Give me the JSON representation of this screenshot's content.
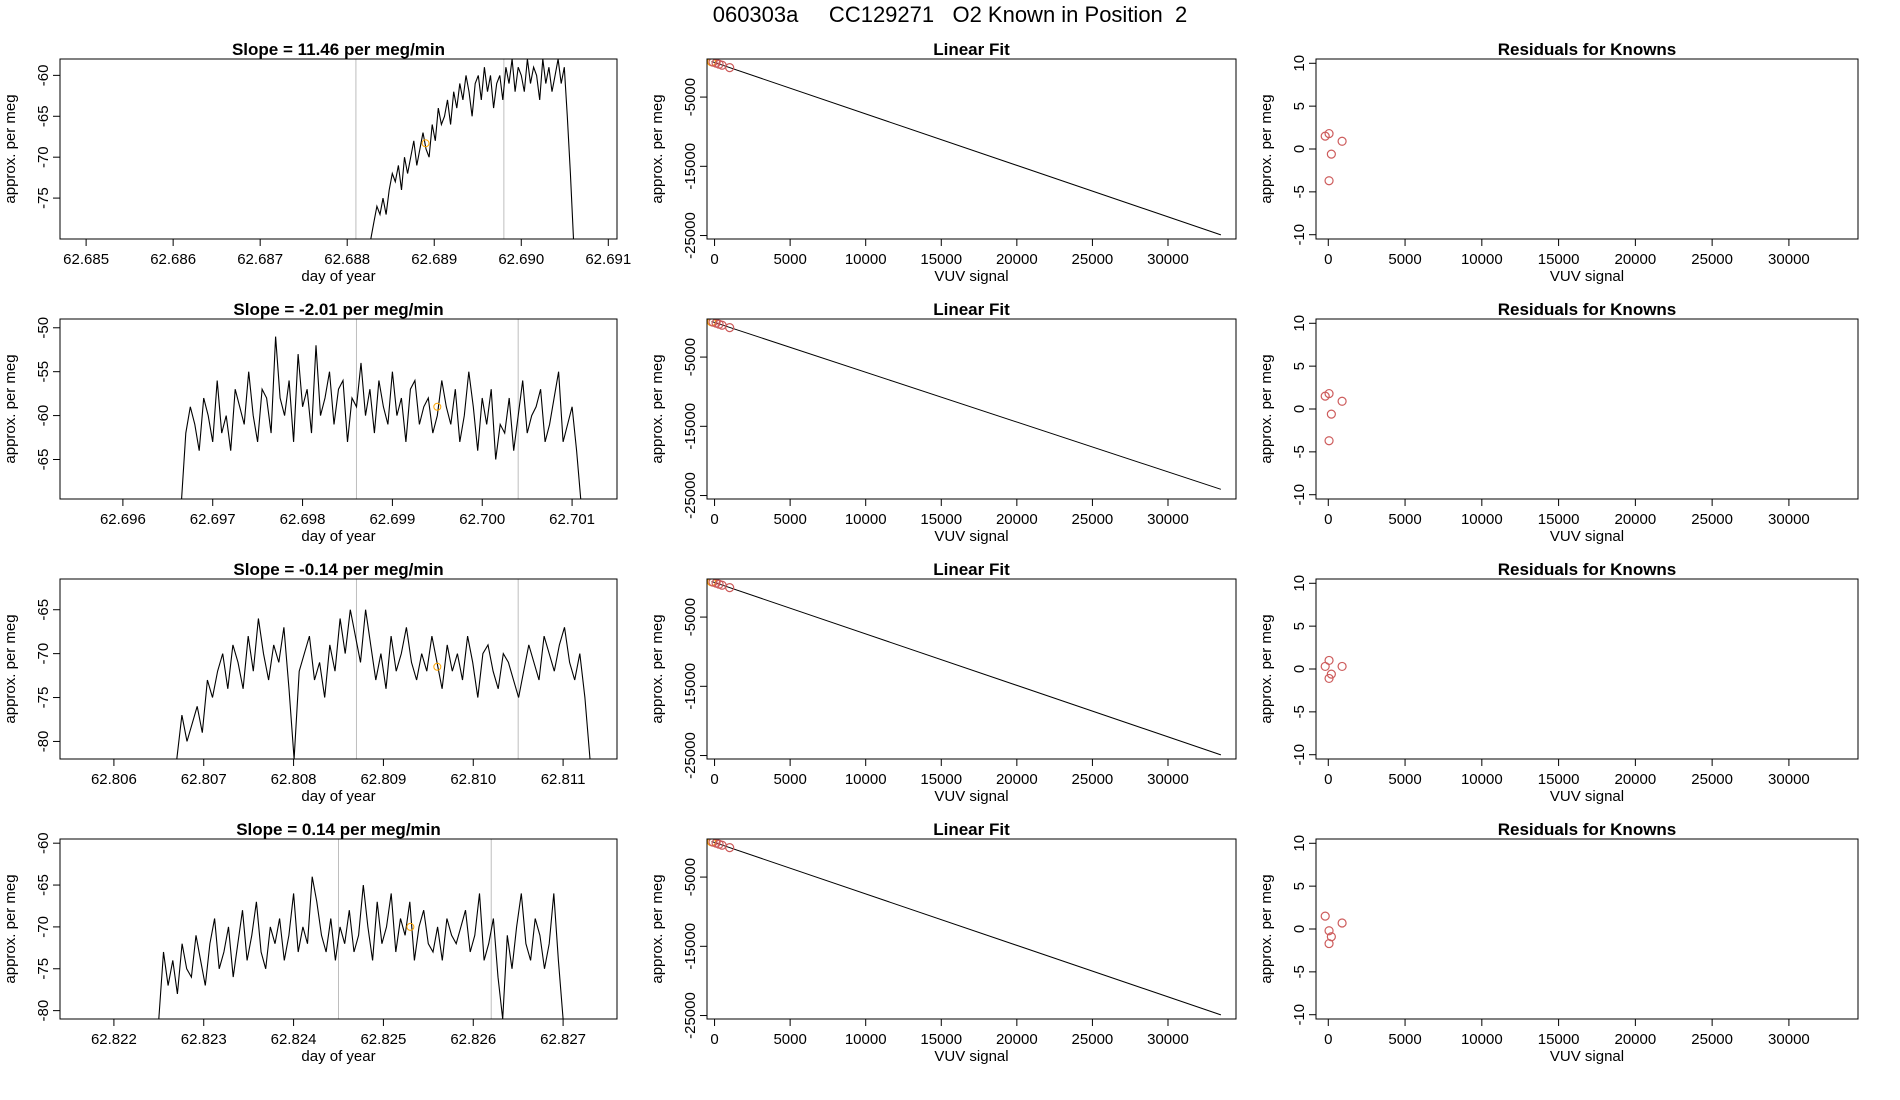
{
  "page_title": "060303a     CC129271   O2 Known in Position  2",
  "colors": {
    "trace": "#000000",
    "gridline": "#bebebe",
    "known_marker": "#ffa500",
    "fit_marker": "#cd5c5c",
    "frame": "#000000"
  },
  "chart_data": [
    {
      "id": "ts1",
      "type": "line",
      "title": "Slope =  11.46  per meg/min",
      "xlabel": "day of year",
      "ylabel": "approx. per meg",
      "xlim": [
        62.6847,
        62.6911
      ],
      "ylim": [
        -80,
        -58
      ],
      "xticks": [
        62.685,
        62.686,
        62.687,
        62.688,
        62.689,
        62.69,
        62.691
      ],
      "xtick_labels": [
        "62.685",
        "62.686",
        "62.687",
        "62.688",
        "62.689",
        "62.690",
        "62.691"
      ],
      "yticks": [
        -75,
        -70,
        -65,
        -60
      ],
      "ytick_labels": [
        "-75",
        "-70",
        "-65",
        "-60"
      ],
      "vlines": [
        62.6881,
        62.6898
      ],
      "marker": {
        "x": 62.6889,
        "y": -68.3
      },
      "x_start": 62.6882,
      "x_end": 62.6906,
      "values": [
        -80,
        -80,
        -80,
        -78,
        -76,
        -77,
        -75,
        -77,
        -74,
        -72,
        -73,
        -71,
        -74,
        -70,
        -72,
        -70,
        -68,
        -71,
        -69,
        -67,
        -69,
        -70,
        -66,
        -68,
        -64,
        -66,
        -65,
        -63,
        -66,
        -62,
        -64,
        -61,
        -63,
        -60,
        -62,
        -65,
        -61,
        -60,
        -63,
        -59,
        -62,
        -60,
        -64,
        -61,
        -60,
        -63,
        -59,
        -61,
        -58,
        -62,
        -59,
        -60,
        -62,
        -58,
        -61,
        -59,
        -60,
        -63,
        -58,
        -61,
        -59,
        -62,
        -60,
        -58,
        -61,
        -59,
        -65,
        -72,
        -80
      ]
    },
    {
      "id": "fit1",
      "type": "line",
      "title": "Linear Fit",
      "xlabel": "VUV signal",
      "ylabel": "approx. per meg",
      "xlim": [
        -500,
        34500
      ],
      "ylim": [
        -25500,
        500
      ],
      "xticks": [
        0,
        5000,
        10000,
        15000,
        20000,
        25000,
        30000
      ],
      "xtick_labels": [
        "0",
        "5000",
        "10000",
        "15000",
        "20000",
        "25000",
        "30000"
      ],
      "yticks": [
        -25000,
        -15000,
        -5000
      ],
      "ytick_labels": [
        "-25000",
        "-15000",
        "-5000"
      ],
      "line": {
        "x": [
          -200,
          33500
        ],
        "y": [
          150,
          -24900
        ]
      },
      "points": [
        {
          "x": -200,
          "y": 100,
          "color": "#ffa500"
        },
        {
          "x": -100,
          "y": 50
        },
        {
          "x": 100,
          "y": -100
        },
        {
          "x": 300,
          "y": -250
        },
        {
          "x": 500,
          "y": -400
        },
        {
          "x": 1000,
          "y": -750
        }
      ]
    },
    {
      "id": "res1",
      "type": "scatter",
      "title": "Residuals for Knowns",
      "xlabel": "VUV signal",
      "ylabel": "approx. per meg",
      "xlim": [
        -800,
        34500
      ],
      "ylim": [
        -10.5,
        10.5
      ],
      "xticks": [
        0,
        5000,
        10000,
        15000,
        20000,
        25000,
        30000
      ],
      "xtick_labels": [
        "0",
        "5000",
        "10000",
        "15000",
        "20000",
        "25000",
        "30000"
      ],
      "yticks": [
        -10,
        -5,
        0,
        5,
        10
      ],
      "ytick_labels": [
        "-10",
        "-5",
        "0",
        "5",
        "10"
      ],
      "points": [
        {
          "x": -200,
          "y": 1.5
        },
        {
          "x": 50,
          "y": 1.8
        },
        {
          "x": 200,
          "y": -0.6
        },
        {
          "x": 50,
          "y": -3.7
        },
        {
          "x": 900,
          "y": 0.9
        }
      ]
    },
    {
      "id": "ts2",
      "type": "line",
      "title": "Slope =  -2.01  per meg/min",
      "xlabel": "day of year",
      "ylabel": "approx. per meg",
      "xlim": [
        62.6953,
        62.7015
      ],
      "ylim": [
        -69.5,
        -49
      ],
      "xticks": [
        62.696,
        62.697,
        62.698,
        62.699,
        62.7,
        62.701
      ],
      "xtick_labels": [
        "62.696",
        "62.697",
        "62.698",
        "62.699",
        "62.700",
        "62.701"
      ],
      "yticks": [
        -65,
        -60,
        -55,
        -50
      ],
      "ytick_labels": [
        "-65",
        "-60",
        "-55",
        "-50"
      ],
      "vlines": [
        62.6986,
        62.7004
      ],
      "marker": {
        "x": 62.6995,
        "y": -59.0
      },
      "x_start": 62.6966,
      "x_end": 62.7011,
      "values": [
        -70,
        -70,
        -62,
        -59,
        -61,
        -64,
        -58,
        -60,
        -63,
        -56,
        -62,
        -60,
        -64,
        -57,
        -59,
        -61,
        -55,
        -60,
        -63,
        -57,
        -58,
        -62,
        -51,
        -58,
        -60,
        -56,
        -63,
        -53,
        -59,
        -57,
        -62,
        -52,
        -60,
        -58,
        -55,
        -61,
        -57,
        -56,
        -63,
        -58,
        -59,
        -54,
        -60,
        -57,
        -62,
        -56,
        -59,
        -61,
        -55,
        -60,
        -58,
        -63,
        -57,
        -56,
        -61,
        -59,
        -58,
        -62,
        -60,
        -56,
        -59,
        -61,
        -57,
        -63,
        -60,
        -55,
        -59,
        -64,
        -58,
        -61,
        -57,
        -65,
        -61,
        -62,
        -58,
        -64,
        -60,
        -56,
        -62,
        -60,
        -59,
        -57,
        -63,
        -61,
        -58,
        -55,
        -63,
        -61,
        -59,
        -64,
        -70
      ]
    },
    {
      "id": "fit2",
      "type": "line",
      "title": "Linear Fit",
      "xlabel": "VUV signal",
      "ylabel": "approx. per meg",
      "xlim": [
        -500,
        34500
      ],
      "ylim": [
        -25500,
        500
      ],
      "xticks": [
        0,
        5000,
        10000,
        15000,
        20000,
        25000,
        30000
      ],
      "xtick_labels": [
        "0",
        "5000",
        "10000",
        "15000",
        "20000",
        "25000",
        "30000"
      ],
      "yticks": [
        -25000,
        -15000,
        -5000
      ],
      "ytick_labels": [
        "-25000",
        "-15000",
        "-5000"
      ],
      "line": {
        "x": [
          -200,
          33500
        ],
        "y": [
          150,
          -24100
        ]
      },
      "points": [
        {
          "x": -200,
          "y": 100,
          "color": "#ffa500"
        },
        {
          "x": -100,
          "y": 50
        },
        {
          "x": 100,
          "y": -100
        },
        {
          "x": 300,
          "y": -250
        },
        {
          "x": 500,
          "y": -400
        },
        {
          "x": 1000,
          "y": -750
        }
      ]
    },
    {
      "id": "res2",
      "type": "scatter",
      "title": "Residuals for Knowns",
      "xlabel": "VUV signal",
      "ylabel": "approx. per meg",
      "xlim": [
        -800,
        34500
      ],
      "ylim": [
        -10.5,
        10.5
      ],
      "xticks": [
        0,
        5000,
        10000,
        15000,
        20000,
        25000,
        30000
      ],
      "xtick_labels": [
        "0",
        "5000",
        "10000",
        "15000",
        "20000",
        "25000",
        "30000"
      ],
      "yticks": [
        -10,
        -5,
        0,
        5,
        10
      ],
      "ytick_labels": [
        "-10",
        "-5",
        "0",
        "5",
        "10"
      ],
      "points": [
        {
          "x": -200,
          "y": 1.5
        },
        {
          "x": 50,
          "y": 1.8
        },
        {
          "x": 200,
          "y": -0.6
        },
        {
          "x": 50,
          "y": -3.7
        },
        {
          "x": 900,
          "y": 0.9
        }
      ]
    },
    {
      "id": "ts3",
      "type": "line",
      "title": "Slope =  -0.14  per meg/min",
      "xlabel": "day of year",
      "ylabel": "approx. per meg",
      "xlim": [
        62.8054,
        62.8116
      ],
      "ylim": [
        -82,
        -61.5
      ],
      "xticks": [
        62.806,
        62.807,
        62.808,
        62.809,
        62.81,
        62.811
      ],
      "xtick_labels": [
        "62.806",
        "62.807",
        "62.808",
        "62.809",
        "62.810",
        "62.811"
      ],
      "yticks": [
        -80,
        -75,
        -70,
        -65
      ],
      "ytick_labels": [
        "-80",
        "-75",
        "-70",
        "-65"
      ],
      "vlines": [
        62.8087,
        62.8105
      ],
      "marker": {
        "x": 62.8096,
        "y": -71.5
      },
      "x_start": 62.8067,
      "x_end": 62.8113,
      "values": [
        -82,
        -77,
        -80,
        -78,
        -76,
        -79,
        -73,
        -75,
        -72,
        -70,
        -74,
        -69,
        -71,
        -74,
        -68,
        -72,
        -66,
        -70,
        -73,
        -69,
        -71,
        -67,
        -74,
        -82,
        -72,
        -70,
        -68,
        -73,
        -71,
        -75,
        -69,
        -72,
        -66,
        -70,
        -65,
        -68,
        -71,
        -65,
        -69,
        -73,
        -70,
        -74,
        -68,
        -72,
        -70,
        -67,
        -71,
        -73,
        -70,
        -72,
        -68,
        -71,
        -74,
        -69,
        -72,
        -70,
        -73,
        -68,
        -71,
        -75,
        -70,
        -69,
        -72,
        -74,
        -70,
        -71,
        -73,
        -75,
        -72,
        -69,
        -71,
        -73,
        -68,
        -70,
        -72,
        -69,
        -67,
        -71,
        -73,
        -70,
        -75,
        -82
      ]
    },
    {
      "id": "fit3",
      "type": "line",
      "title": "Linear Fit",
      "xlabel": "VUV signal",
      "ylabel": "approx. per meg",
      "xlim": [
        -500,
        34500
      ],
      "ylim": [
        -25500,
        500
      ],
      "xticks": [
        0,
        5000,
        10000,
        15000,
        20000,
        25000,
        30000
      ],
      "xtick_labels": [
        "0",
        "5000",
        "10000",
        "15000",
        "20000",
        "25000",
        "30000"
      ],
      "yticks": [
        -25000,
        -15000,
        -5000
      ],
      "ytick_labels": [
        "-25000",
        "-15000",
        "-5000"
      ],
      "line": {
        "x": [
          -200,
          33500
        ],
        "y": [
          150,
          -24900
        ]
      },
      "points": [
        {
          "x": -200,
          "y": 100,
          "color": "#ffa500"
        },
        {
          "x": -100,
          "y": 50
        },
        {
          "x": 100,
          "y": -100
        },
        {
          "x": 300,
          "y": -250
        },
        {
          "x": 500,
          "y": -400
        },
        {
          "x": 1000,
          "y": -750
        }
      ]
    },
    {
      "id": "res3",
      "type": "scatter",
      "title": "Residuals for Knowns",
      "xlabel": "VUV signal",
      "ylabel": "approx. per meg",
      "xlim": [
        -800,
        34500
      ],
      "ylim": [
        -10.5,
        10.5
      ],
      "xticks": [
        0,
        5000,
        10000,
        15000,
        20000,
        25000,
        30000
      ],
      "xtick_labels": [
        "0",
        "5000",
        "10000",
        "15000",
        "20000",
        "25000",
        "30000"
      ],
      "yticks": [
        -10,
        -5,
        0,
        5,
        10
      ],
      "ytick_labels": [
        "-10",
        "-5",
        "0",
        "5",
        "10"
      ],
      "points": [
        {
          "x": -200,
          "y": 0.3
        },
        {
          "x": 50,
          "y": 1.0
        },
        {
          "x": 200,
          "y": -0.6
        },
        {
          "x": 50,
          "y": -1.1
        },
        {
          "x": 900,
          "y": 0.3
        }
      ]
    },
    {
      "id": "ts4",
      "type": "line",
      "title": "Slope =  0.14  per meg/min",
      "xlabel": "day of year",
      "ylabel": "approx. per meg",
      "xlim": [
        62.8214,
        62.8276
      ],
      "ylim": [
        -81,
        -59.5
      ],
      "xticks": [
        62.822,
        62.823,
        62.824,
        62.825,
        62.826,
        62.827
      ],
      "xtick_labels": [
        "62.822",
        "62.823",
        "62.824",
        "62.825",
        "62.826",
        "62.827"
      ],
      "yticks": [
        -80,
        -75,
        -70,
        -65,
        -60
      ],
      "ytick_labels": [
        "-80",
        "-75",
        "-70",
        "-65",
        "-60"
      ],
      "vlines": [
        62.8245,
        62.8262
      ],
      "marker": {
        "x": 62.8253,
        "y": -70.0
      },
      "x_start": 62.8225,
      "x_end": 62.827,
      "values": [
        -81,
        -73,
        -77,
        -74,
        -78,
        -72,
        -75,
        -76,
        -71,
        -74,
        -77,
        -72,
        -69,
        -75,
        -73,
        -70,
        -76,
        -72,
        -68,
        -74,
        -71,
        -67,
        -73,
        -75,
        -70,
        -72,
        -69,
        -74,
        -71,
        -66,
        -73,
        -70,
        -72,
        -64,
        -67,
        -71,
        -73,
        -69,
        -74,
        -70,
        -72,
        -68,
        -73,
        -71,
        -65,
        -70,
        -74,
        -67,
        -72,
        -70,
        -66,
        -73,
        -69,
        -71,
        -67,
        -74,
        -70,
        -68,
        -72,
        -73,
        -70,
        -74,
        -69,
        -71,
        -72,
        -70,
        -68,
        -73,
        -71,
        -66,
        -74,
        -72,
        -69,
        -76,
        -81,
        -71,
        -75,
        -70,
        -66,
        -72,
        -74,
        -69,
        -71,
        -75,
        -72,
        -66,
        -74,
        -81
      ]
    },
    {
      "id": "fit4",
      "type": "line",
      "title": "Linear Fit",
      "xlabel": "VUV signal",
      "ylabel": "approx. per meg",
      "xlim": [
        -500,
        34500
      ],
      "ylim": [
        -25500,
        500
      ],
      "xticks": [
        0,
        5000,
        10000,
        15000,
        20000,
        25000,
        30000
      ],
      "xtick_labels": [
        "0",
        "5000",
        "10000",
        "15000",
        "20000",
        "25000",
        "30000"
      ],
      "yticks": [
        -25000,
        -15000,
        -5000
      ],
      "ytick_labels": [
        "-25000",
        "-15000",
        "-5000"
      ],
      "line": {
        "x": [
          -200,
          33500
        ],
        "y": [
          150,
          -24900
        ]
      },
      "points": [
        {
          "x": -200,
          "y": 100,
          "color": "#ffa500"
        },
        {
          "x": -100,
          "y": 50
        },
        {
          "x": 100,
          "y": -100
        },
        {
          "x": 300,
          "y": -250
        },
        {
          "x": 500,
          "y": -400
        },
        {
          "x": 1000,
          "y": -750
        }
      ]
    },
    {
      "id": "res4",
      "type": "scatter",
      "title": "Residuals for Knowns",
      "xlabel": "VUV signal",
      "ylabel": "approx. per meg",
      "xlim": [
        -800,
        34500
      ],
      "ylim": [
        -10.5,
        10.5
      ],
      "xticks": [
        0,
        5000,
        10000,
        15000,
        20000,
        25000,
        30000
      ],
      "xtick_labels": [
        "0",
        "5000",
        "10000",
        "15000",
        "20000",
        "25000",
        "30000"
      ],
      "yticks": [
        -10,
        -5,
        0,
        5,
        10
      ],
      "ytick_labels": [
        "-10",
        "-5",
        "0",
        "5",
        "10"
      ],
      "points": [
        {
          "x": -200,
          "y": 1.5
        },
        {
          "x": 50,
          "y": -0.2
        },
        {
          "x": 200,
          "y": -0.9
        },
        {
          "x": 50,
          "y": -1.7
        },
        {
          "x": 900,
          "y": 0.7
        }
      ]
    }
  ]
}
